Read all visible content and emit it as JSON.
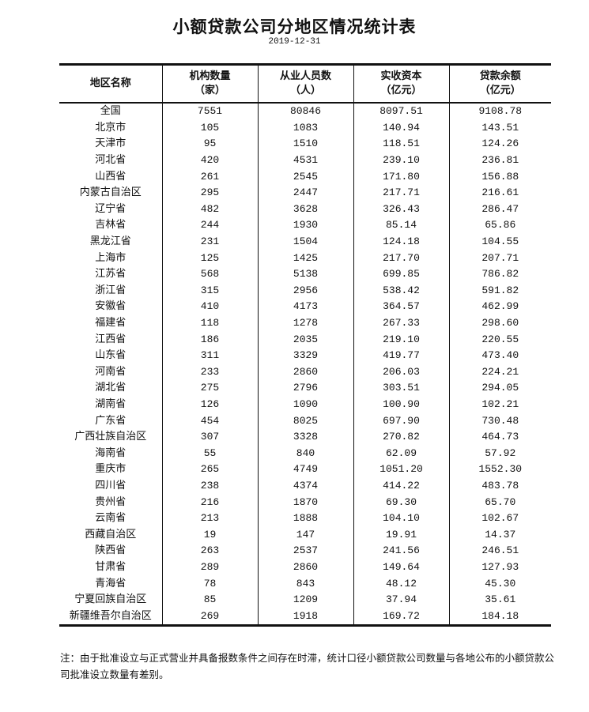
{
  "title": "小额贷款公司分地区情况统计表",
  "date": "2019-12-31",
  "headers": [
    {
      "line1": "地区名称",
      "line2": ""
    },
    {
      "line1": "机构数量",
      "line2": "（家）"
    },
    {
      "line1": "从业人员数",
      "line2": "（人）"
    },
    {
      "line1": "实收资本",
      "line2": "（亿元）"
    },
    {
      "line1": "贷款余额",
      "line2": "（亿元）"
    }
  ],
  "rows": [
    [
      "全国",
      "7551",
      "80846",
      "8097.51",
      "9108.78"
    ],
    [
      "北京市",
      "105",
      "1083",
      "140.94",
      "143.51"
    ],
    [
      "天津市",
      "95",
      "1510",
      "118.51",
      "124.26"
    ],
    [
      "河北省",
      "420",
      "4531",
      "239.10",
      "236.81"
    ],
    [
      "山西省",
      "261",
      "2545",
      "171.80",
      "156.88"
    ],
    [
      "内蒙古自治区",
      "295",
      "2447",
      "217.71",
      "216.61"
    ],
    [
      "辽宁省",
      "482",
      "3628",
      "326.43",
      "286.47"
    ],
    [
      "吉林省",
      "244",
      "1930",
      "85.14",
      "65.86"
    ],
    [
      "黑龙江省",
      "231",
      "1504",
      "124.18",
      "104.55"
    ],
    [
      "上海市",
      "125",
      "1425",
      "217.70",
      "207.71"
    ],
    [
      "江苏省",
      "568",
      "5138",
      "699.85",
      "786.82"
    ],
    [
      "浙江省",
      "315",
      "2956",
      "538.42",
      "591.82"
    ],
    [
      "安徽省",
      "410",
      "4173",
      "364.57",
      "462.99"
    ],
    [
      "福建省",
      "118",
      "1278",
      "267.33",
      "298.60"
    ],
    [
      "江西省",
      "186",
      "2035",
      "219.10",
      "220.55"
    ],
    [
      "山东省",
      "311",
      "3329",
      "419.77",
      "473.40"
    ],
    [
      "河南省",
      "233",
      "2860",
      "206.03",
      "224.21"
    ],
    [
      "湖北省",
      "275",
      "2796",
      "303.51",
      "294.05"
    ],
    [
      "湖南省",
      "126",
      "1090",
      "100.90",
      "102.21"
    ],
    [
      "广东省",
      "454",
      "8025",
      "697.90",
      "730.48"
    ],
    [
      "广西壮族自治区",
      "307",
      "3328",
      "270.82",
      "464.73"
    ],
    [
      "海南省",
      "55",
      "840",
      "62.09",
      "57.92"
    ],
    [
      "重庆市",
      "265",
      "4749",
      "1051.20",
      "1552.30"
    ],
    [
      "四川省",
      "238",
      "4374",
      "414.22",
      "483.78"
    ],
    [
      "贵州省",
      "216",
      "1870",
      "69.30",
      "65.70"
    ],
    [
      "云南省",
      "213",
      "1888",
      "104.10",
      "102.67"
    ],
    [
      "西藏自治区",
      "19",
      "147",
      "19.91",
      "14.37"
    ],
    [
      "陕西省",
      "263",
      "2537",
      "241.56",
      "246.51"
    ],
    [
      "甘肃省",
      "289",
      "2860",
      "149.64",
      "127.93"
    ],
    [
      "青海省",
      "78",
      "843",
      "48.12",
      "45.30"
    ],
    [
      "宁夏回族自治区",
      "85",
      "1209",
      "37.94",
      "35.61"
    ],
    [
      "新疆维吾尔自治区",
      "269",
      "1918",
      "169.72",
      "184.18"
    ]
  ],
  "note": "注：由于批准设立与正式营业并具备报数条件之间存在时滞，统计口径小额贷款公司数量与各地公布的小额贷款公司批准设立数量有差别。"
}
